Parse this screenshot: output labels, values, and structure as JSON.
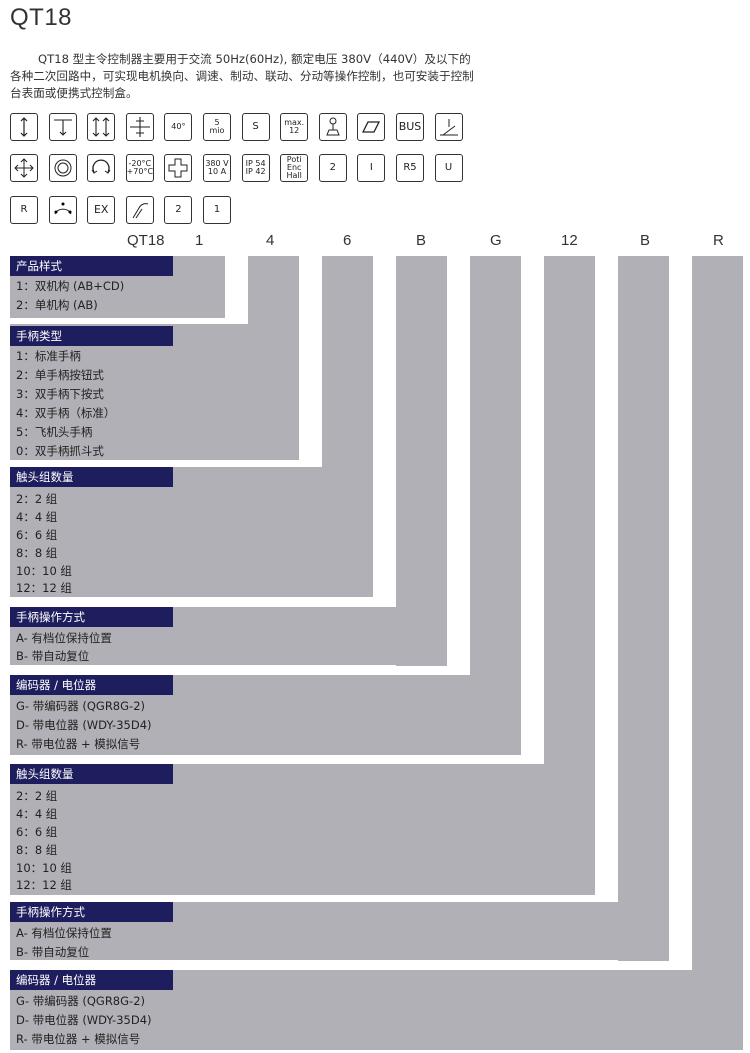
{
  "title": "QT18",
  "intro": "QT18 型主令控制器主要用于交流 50Hz(60Hz), 额定电压 380V（440V）及以下的各种二次回路中，可实现电机换向、调速、制动、联动、分动等操作控制，也可安装于控制台表面或便携式控制盒。",
  "icons": [
    {
      "name": "updown-arrow-icon"
    },
    {
      "name": "spring-return-icon"
    },
    {
      "name": "four-way-arrow-icon"
    },
    {
      "name": "cross-gate-icon"
    },
    {
      "name": "temperature-40-icon",
      "text": "40°"
    },
    {
      "name": "mio-5-icon",
      "text": "5\nmio"
    },
    {
      "name": "switch-s-icon",
      "text": "S"
    },
    {
      "name": "max-12-icon",
      "text": "max. 12"
    },
    {
      "name": "joystick-icon"
    },
    {
      "name": "panel-mount-icon"
    },
    {
      "name": "bus-icon",
      "text": "BUS"
    },
    {
      "name": "pedal-icon"
    },
    {
      "name": "cross-arrows-icon"
    },
    {
      "name": "ring-icon"
    },
    {
      "name": "rotary-icon"
    },
    {
      "name": "temperature-range-icon",
      "text": "-20°C\n+70°C"
    },
    {
      "name": "cross-outline-icon"
    },
    {
      "name": "voltage-current-icon",
      "text": "380 V\n10 A"
    },
    {
      "name": "ip-rating-icon",
      "text": "IP 54\nIP 42"
    },
    {
      "name": "poti-enc-hall-icon",
      "text": "Poti\nEnc\nHall"
    },
    {
      "name": "handle-2-icon",
      "text": "2"
    },
    {
      "name": "gauge-i-icon",
      "text": "I"
    },
    {
      "name": "r5-icon",
      "text": "R5"
    },
    {
      "name": "gauge-u-icon",
      "text": "U"
    },
    {
      "name": "gauge-r-icon",
      "text": "R"
    },
    {
      "name": "arc-dots-icon"
    },
    {
      "name": "ex-icon",
      "text": "EX"
    },
    {
      "name": "grip-icon"
    },
    {
      "name": "handle-top-2-icon",
      "text": "2"
    },
    {
      "name": "handle-top-1-icon",
      "text": "1"
    }
  ],
  "code": [
    "QT18",
    "1",
    "4",
    "6",
    "B",
    "G",
    "12",
    "B",
    "R"
  ],
  "sections": [
    {
      "title": "产品样式",
      "options": [
        "1：双机构 (AB+CD)",
        "2：单机构 (AB)"
      ]
    },
    {
      "title": "手柄类型",
      "options": [
        "1：标准手柄",
        "2：单手柄按钮式",
        "3：双手柄下按式",
        "4：双手柄（标准）",
        "5：飞机头手柄",
        "0：双手柄抓斗式"
      ]
    },
    {
      "title": "触头组数量",
      "options": [
        "2：2 组",
        "4：4 组",
        "6：6 组",
        "8：8 组",
        "10：10 组",
        "12：12 组"
      ]
    },
    {
      "title": "手柄操作方式",
      "options": [
        "A- 有档位保持位置",
        "B- 带自动复位"
      ]
    },
    {
      "title": "编码器 / 电位器",
      "options": [
        "G- 带编码器 (QGR8G-2)",
        "D- 带电位器 (WDY-35D4)",
        "R- 带电位器 + 模拟信号"
      ]
    },
    {
      "title": "触头组数量",
      "options": [
        "2：2 组",
        "4：4 组",
        "6：6 组",
        "8：8 组",
        "10：10 组",
        "12：12 组"
      ]
    },
    {
      "title": "手柄操作方式",
      "options": [
        "A- 有档位保持位置",
        "B- 带自动复位"
      ]
    },
    {
      "title": "编码器 / 电位器",
      "options": [
        "G- 带编码器 (QGR8G-2)",
        "D- 带电位器 (WDY-35D4)",
        "R- 带电位器 + 模拟信号"
      ]
    }
  ]
}
